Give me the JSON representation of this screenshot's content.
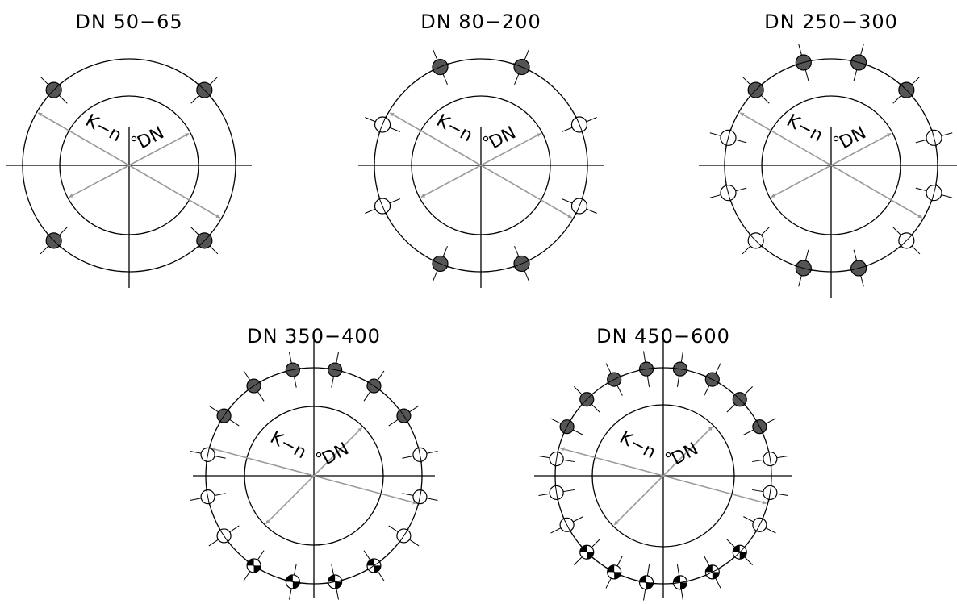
{
  "colors": {
    "line": "#000000",
    "arrow": "#9a9a9a",
    "filled_hole": "#555555",
    "background": "#ffffff"
  },
  "labels": {
    "k": "K−n",
    "dn": "DN"
  },
  "diagrams": [
    {
      "title": "DN  50−65",
      "holes": [
        {
          "angle": 45,
          "type": "filled"
        },
        {
          "angle": 135,
          "type": "filled"
        },
        {
          "angle": 225,
          "type": "filled"
        },
        {
          "angle": 315,
          "type": "filled"
        }
      ]
    },
    {
      "title": "DN  80−200",
      "holes": [
        {
          "angle": 22.5,
          "type": "open"
        },
        {
          "angle": 67.5,
          "type": "filled"
        },
        {
          "angle": 112.5,
          "type": "filled"
        },
        {
          "angle": 157.5,
          "type": "open"
        },
        {
          "angle": 202.5,
          "type": "open"
        },
        {
          "angle": 247.5,
          "type": "filled"
        },
        {
          "angle": 292.5,
          "type": "filled"
        },
        {
          "angle": 337.5,
          "type": "open"
        }
      ]
    },
    {
      "title": "DN  250−300",
      "holes": [
        {
          "angle": 15,
          "type": "open"
        },
        {
          "angle": 45,
          "type": "filled"
        },
        {
          "angle": 75,
          "type": "filled"
        },
        {
          "angle": 105,
          "type": "filled"
        },
        {
          "angle": 135,
          "type": "filled"
        },
        {
          "angle": 165,
          "type": "open"
        },
        {
          "angle": 195,
          "type": "open"
        },
        {
          "angle": 225,
          "type": "open"
        },
        {
          "angle": 255,
          "type": "filled"
        },
        {
          "angle": 285,
          "type": "filled"
        },
        {
          "angle": 315,
          "type": "open"
        },
        {
          "angle": 345,
          "type": "open"
        }
      ]
    },
    {
      "title": "DN  350−400",
      "holes": [
        {
          "angle": 11.25,
          "type": "open"
        },
        {
          "angle": 33.75,
          "type": "filled"
        },
        {
          "angle": 56.25,
          "type": "filled"
        },
        {
          "angle": 78.75,
          "type": "filled"
        },
        {
          "angle": 101.25,
          "type": "filled"
        },
        {
          "angle": 123.75,
          "type": "filled"
        },
        {
          "angle": 146.25,
          "type": "filled"
        },
        {
          "angle": 168.75,
          "type": "open"
        },
        {
          "angle": 191.25,
          "type": "open"
        },
        {
          "angle": 213.75,
          "type": "open"
        },
        {
          "angle": 236.25,
          "type": "split"
        },
        {
          "angle": 258.75,
          "type": "split"
        },
        {
          "angle": 281.25,
          "type": "split"
        },
        {
          "angle": 303.75,
          "type": "split"
        },
        {
          "angle": 326.25,
          "type": "open"
        },
        {
          "angle": 348.75,
          "type": "open"
        }
      ]
    },
    {
      "title": "DN  450−600",
      "holes": [
        {
          "angle": 9,
          "type": "open"
        },
        {
          "angle": 27,
          "type": "filled"
        },
        {
          "angle": 45,
          "type": "filled"
        },
        {
          "angle": 63,
          "type": "filled"
        },
        {
          "angle": 81,
          "type": "filled"
        },
        {
          "angle": 99,
          "type": "filled"
        },
        {
          "angle": 117,
          "type": "filled"
        },
        {
          "angle": 135,
          "type": "filled"
        },
        {
          "angle": 153,
          "type": "filled"
        },
        {
          "angle": 171,
          "type": "open"
        },
        {
          "angle": 189,
          "type": "open"
        },
        {
          "angle": 207,
          "type": "open"
        },
        {
          "angle": 225,
          "type": "split"
        },
        {
          "angle": 243,
          "type": "split"
        },
        {
          "angle": 261,
          "type": "split"
        },
        {
          "angle": 279,
          "type": "split"
        },
        {
          "angle": 297,
          "type": "split"
        },
        {
          "angle": 315,
          "type": "split"
        },
        {
          "angle": 333,
          "type": "open"
        },
        {
          "angle": 351,
          "type": "open"
        }
      ]
    }
  ]
}
